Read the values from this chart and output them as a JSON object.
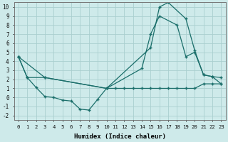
{
  "xlabel": "Humidex (Indice chaleur)",
  "bg_color": "#ceeaea",
  "grid_color": "#aacfcf",
  "line_color": "#1a6e6a",
  "xlim": [
    -0.5,
    23.5
  ],
  "ylim": [
    -2.5,
    10.5
  ],
  "xticks": [
    0,
    1,
    2,
    3,
    4,
    5,
    6,
    7,
    8,
    9,
    10,
    11,
    12,
    13,
    14,
    15,
    16,
    17,
    18,
    19,
    20,
    21,
    22,
    23
  ],
  "yticks": [
    -2,
    -1,
    0,
    1,
    2,
    3,
    4,
    5,
    6,
    7,
    8,
    9,
    10
  ],
  "line1_x": [
    0,
    1,
    2,
    3,
    4,
    5,
    6,
    7,
    8,
    9,
    10,
    11,
    12,
    13,
    14,
    15,
    16,
    17,
    18,
    19,
    20,
    21,
    22,
    23
  ],
  "line1_y": [
    4.5,
    2.2,
    1.1,
    0.1,
    0.0,
    -0.3,
    -0.4,
    -1.3,
    -1.4,
    -0.2,
    1.0,
    1.0,
    1.0,
    1.0,
    1.0,
    1.0,
    1.0,
    1.0,
    1.0,
    1.0,
    1.0,
    1.5,
    1.5,
    1.5
  ],
  "line2_x": [
    0,
    1,
    3,
    10,
    15,
    16,
    17,
    19,
    20,
    21,
    22,
    23
  ],
  "line2_y": [
    4.5,
    2.2,
    2.2,
    1.0,
    5.5,
    10.0,
    10.5,
    8.7,
    5.2,
    2.5,
    2.3,
    1.5
  ],
  "line3_x": [
    0,
    3,
    10,
    14,
    15,
    16,
    18,
    19,
    20,
    21,
    22,
    23
  ],
  "line3_y": [
    4.5,
    2.2,
    1.0,
    3.2,
    7.0,
    9.0,
    8.0,
    4.5,
    5.0,
    2.5,
    2.3,
    2.2
  ]
}
